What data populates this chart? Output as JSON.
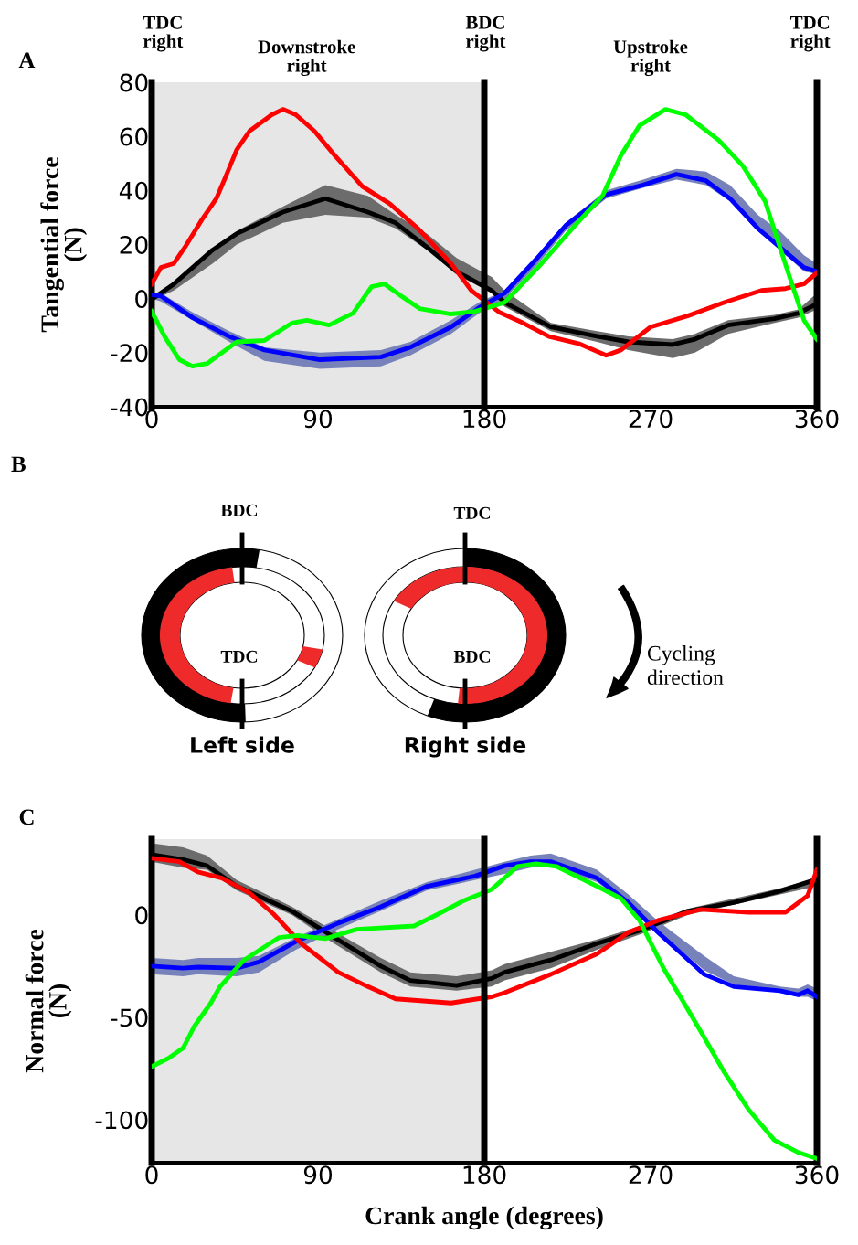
{
  "chart_data": [
    {
      "type": "line",
      "title": "A",
      "ylabel": "Tangential force\n(N)",
      "annotations": [
        "TDC\nright",
        "Downstroke\nright",
        "BDC\nright",
        "Upstroke\nright",
        "TDC\nright"
      ],
      "xlim": [
        0,
        360
      ],
      "xticks": [
        0,
        90,
        180,
        270,
        360
      ],
      "ylim": [
        -40,
        80
      ],
      "yticks": [
        -40,
        -20,
        0,
        20,
        40,
        60,
        80
      ],
      "grid": false,
      "legend": false,
      "marker": "none",
      "line_style": "solid",
      "bands": [
        {
          "axis": "x",
          "from": 0,
          "to": 180,
          "color": "#e6e6e6"
        }
      ],
      "ref_lines": [
        {
          "axis": "x",
          "value": 180,
          "color": "#000000"
        }
      ],
      "series": [
        {
          "color": "#000000",
          "x": [
            0,
            12,
            33,
            46,
            71,
            94,
            117,
            132,
            149,
            165,
            184,
            191,
            216,
            241,
            258,
            282,
            294,
            312,
            337,
            350,
            360
          ],
          "values": [
            -0.3,
            5.4,
            18,
            24,
            32,
            37,
            32,
            28,
            19,
            10,
            3,
            -1.4,
            -10.5,
            -13.9,
            -16,
            -17,
            -15,
            -9.8,
            -7.4,
            -5.4,
            -2
          ],
          "lower": [
            -1,
            3,
            13,
            20,
            28,
            31,
            30,
            26,
            18,
            9,
            2,
            -3,
            -12,
            -16,
            -19,
            -22,
            -20,
            -13,
            -9,
            -7,
            -4
          ],
          "upper": [
            0,
            6,
            18,
            25,
            34,
            42,
            38,
            31,
            24,
            15,
            8,
            3,
            -9,
            -12,
            -14,
            -15,
            -13,
            -8,
            -6,
            -4,
            2
          ]
        },
        {
          "color": "#0000ff",
          "x": [
            0,
            5,
            22,
            42,
            61,
            91,
            124,
            140,
            162,
            178,
            191,
            208,
            224,
            246,
            266,
            284,
            300,
            313,
            328,
            340,
            353,
            360
          ],
          "values": [
            1.4,
            1,
            -7,
            -14,
            -19,
            -22.6,
            -21.6,
            -18,
            -10.5,
            -3,
            2,
            14.5,
            27,
            38.5,
            42,
            46,
            43.6,
            37,
            26,
            19,
            11.5,
            10
          ],
          "lower": [
            0,
            -1,
            -8,
            -16,
            -23,
            -26,
            -25,
            -21,
            -13,
            -5,
            0,
            12,
            25,
            37,
            41,
            44,
            42,
            36,
            25,
            18,
            10,
            9
          ],
          "upper": [
            2,
            2,
            -5,
            -12,
            -18,
            -20,
            -19,
            -16,
            -8,
            -1,
            3,
            15,
            28,
            40,
            44,
            48,
            47,
            42,
            31,
            25,
            16,
            13
          ]
        },
        {
          "color": "#ff0000",
          "x": [
            0,
            5,
            12,
            18,
            27,
            35,
            40,
            46,
            53,
            65,
            71,
            78,
            88,
            99,
            114,
            129,
            144,
            162,
            173,
            188,
            201,
            215,
            231,
            246,
            254,
            270,
            290,
            310,
            330,
            343,
            353,
            360
          ],
          "values": [
            5.4,
            11.5,
            13,
            19,
            29,
            37,
            45,
            55,
            62,
            68,
            70,
            68,
            62,
            53,
            41.5,
            35,
            26,
            13,
            3,
            -5,
            -9,
            -14,
            -16.6,
            -21,
            -19,
            -10.5,
            -6.4,
            -1.4,
            3,
            3.7,
            5.4,
            9.5
          ]
        },
        {
          "color": "#00ff00",
          "x": [
            0,
            7,
            15,
            22,
            30,
            46,
            61,
            76,
            84,
            96,
            109,
            119,
            126,
            135,
            145,
            162,
            175,
            191,
            211,
            229,
            244,
            254,
            264,
            278,
            289,
            307,
            320,
            332,
            340,
            347,
            353,
            360
          ],
          "values": [
            -4.7,
            -14,
            -22.6,
            -25,
            -24,
            -16,
            -15.5,
            -9,
            -8,
            -9.8,
            -5.4,
            4.4,
            5.4,
            1,
            -3.7,
            -5.7,
            -4.7,
            -1.4,
            13,
            27,
            38,
            53,
            64,
            70,
            68,
            58.5,
            49,
            36,
            19,
            4.4,
            -8,
            -15
          ]
        }
      ]
    },
    {
      "type": "other",
      "title": "B",
      "annotations": [
        "BDC",
        "TDC",
        "Left side",
        "TDC",
        "BDC",
        "Right side",
        "Cycling\ndirection"
      ]
    },
    {
      "type": "line",
      "title": "C",
      "ylabel": "Normal force\n(N)",
      "xlabel": "Crank angle (degrees)",
      "xlim": [
        0,
        360
      ],
      "xticks": [
        0,
        90,
        180,
        270,
        360
      ],
      "ylim": [
        -121,
        37
      ],
      "yticks": [
        -100,
        -50,
        0
      ],
      "grid": false,
      "legend": false,
      "marker": "none",
      "line_style": "solid",
      "bands": [
        {
          "axis": "x",
          "from": 0,
          "to": 180,
          "color": "#e6e6e6"
        }
      ],
      "ref_lines": [
        {
          "axis": "x",
          "value": 180,
          "color": "#000000"
        }
      ],
      "series": [
        {
          "color": "#000000",
          "x": [
            0,
            17,
            30,
            46,
            76,
            97,
            124,
            140,
            165,
            184,
            191,
            216,
            241,
            266,
            290,
            315,
            340,
            360
          ],
          "values": [
            29.5,
            27,
            24,
            14,
            1.8,
            -10,
            -25,
            -32,
            -34.5,
            -31,
            -28,
            -22,
            -14,
            -7,
            1.8,
            6,
            11.6,
            17.4
          ],
          "lower": [
            26,
            23,
            22,
            12,
            0,
            -13,
            -28,
            -35,
            -37,
            -35,
            -32,
            -26,
            -17,
            -9,
            0,
            5,
            10,
            14
          ],
          "upper": [
            35,
            33,
            29,
            17,
            4,
            -7,
            -21,
            -28,
            -30,
            -27,
            -24,
            -18,
            -12,
            -5,
            3,
            8,
            13,
            18
          ]
        },
        {
          "color": "#0000ff",
          "x": [
            0,
            17,
            25,
            46,
            58,
            78,
            101,
            124,
            149,
            175,
            191,
            205,
            216,
            241,
            258,
            274,
            299,
            315,
            340,
            350,
            355,
            360
          ],
          "values": [
            -25,
            -26,
            -25.5,
            -26,
            -23,
            -13,
            -4,
            4,
            14,
            19,
            24,
            26,
            26,
            18,
            6,
            -8.5,
            -29,
            -35,
            -37,
            -39,
            -37,
            -40
          ],
          "lower": [
            -29,
            -30,
            -29,
            -30,
            -28,
            -17,
            -7,
            2,
            12,
            17,
            20,
            23,
            24,
            16,
            5,
            -8,
            -27,
            -34,
            -38,
            -40,
            -40,
            -42
          ],
          "upper": [
            -21,
            -22,
            -21,
            -21,
            -20,
            -11,
            -2,
            7,
            16,
            22,
            26,
            29,
            30,
            22,
            10,
            -3,
            -20,
            -30,
            -35,
            -36,
            -34,
            -36
          ]
        },
        {
          "color": "#ff0000",
          "x": [
            0,
            15,
            25,
            38,
            53,
            66,
            81,
            101,
            117,
            132,
            162,
            184,
            191,
            216,
            241,
            258,
            274,
            297,
            323,
            343,
            355,
            360
          ],
          "values": [
            27.7,
            26,
            21,
            18,
            10.7,
            0.4,
            -14,
            -28,
            -35,
            -41,
            -43,
            -40,
            -38,
            -29,
            -19,
            -8.5,
            -2.7,
            2.7,
            1.3,
            1.3,
            9.4,
            22
          ]
        },
        {
          "color": "#00ff00",
          "x": [
            0,
            9,
            17,
            23,
            32,
            37,
            50,
            69,
            79,
            94,
            111,
            142,
            155,
            169,
            184,
            198,
            208,
            219,
            241,
            254,
            264,
            277,
            294,
            310,
            323,
            337,
            350,
            360
          ],
          "values": [
            -74,
            -70,
            -65,
            -54.5,
            -43,
            -35,
            -22,
            -11,
            -10,
            -11.6,
            -7,
            -5.4,
            0.4,
            7,
            12.5,
            23.7,
            25,
            23.7,
            14,
            8,
            -2.7,
            -26,
            -52,
            -77,
            -95,
            -110,
            -116,
            -119
          ]
        }
      ]
    }
  ]
}
